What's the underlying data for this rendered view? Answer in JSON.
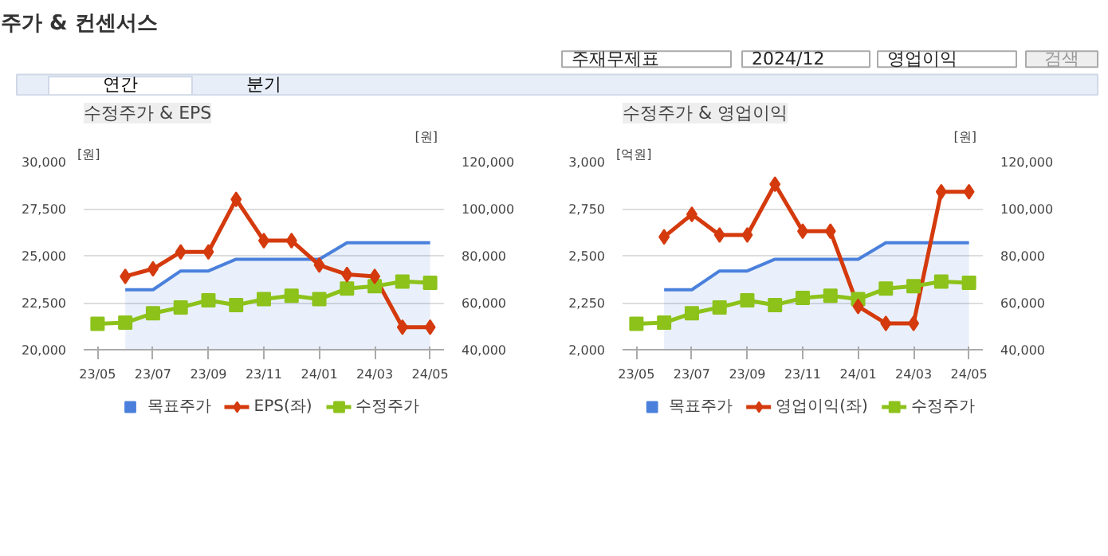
{
  "chart_data": [
    {
      "type": "other",
      "title": "주가 & 컨센서스",
      "annotations": [
        "주재무제표",
        "2024/12",
        "영업이익",
        "검색",
        "연간",
        "분기"
      ]
    },
    {
      "type": "line",
      "title": "수정주가 & EPS",
      "ylabel": "[원]",
      "y2label": "[원]",
      "categories": [
        "23/05",
        null,
        "23/07",
        null,
        "23/09",
        null,
        "23/11",
        null,
        "24/01",
        null,
        "24/03",
        null,
        "24/05"
      ],
      "ylim": [
        20000,
        30000
      ],
      "yticks": [
        {
          "value": 20000,
          "label": "20,000"
        },
        {
          "value": 22500,
          "label": "22,500"
        },
        {
          "value": 25000,
          "label": "25,000"
        },
        {
          "value": 27500,
          "label": "27,500"
        },
        {
          "value": 30000,
          "label": "30,000"
        }
      ],
      "y2lim": [
        40000,
        120000
      ],
      "y2ticks": [
        {
          "value": 40000,
          "label": "40,000"
        },
        {
          "value": 60000,
          "label": "60,000"
        },
        {
          "value": 80000,
          "label": "80,000"
        },
        {
          "value": 100000,
          "label": "100,000"
        },
        {
          "value": 120000,
          "label": "120,000"
        }
      ],
      "grid": "y",
      "legend": "bottom",
      "series": [
        {
          "name": "목표주가",
          "type": "area",
          "axis": "y2",
          "color": "#4a80dc",
          "marker": "none",
          "values": [
            null,
            65500,
            65500,
            73500,
            73500,
            78500,
            78500,
            78500,
            78500,
            85500,
            85500,
            85500,
            85500
          ]
        },
        {
          "name": "EPS(좌)",
          "type": "line",
          "color": "#d43a0d",
          "marker": "diamond",
          "values": [
            null,
            23900,
            24300,
            25200,
            25200,
            28000,
            25800,
            25800,
            24500,
            24000,
            23900,
            21200,
            21200
          ]
        },
        {
          "name": "수정주가",
          "type": "line",
          "axis": "y2",
          "color": "#8cc21a",
          "marker": "square",
          "values": [
            51000,
            51500,
            55500,
            58000,
            61000,
            59000,
            61500,
            63000,
            61500,
            66000,
            67000,
            69000,
            68500
          ]
        }
      ]
    },
    {
      "type": "line",
      "title": "수정주가 & 영업이익",
      "ylabel": "[억원]",
      "y2label": "[원]",
      "categories": [
        "23/05",
        null,
        "23/07",
        null,
        "23/09",
        null,
        "23/11",
        null,
        "24/01",
        null,
        "24/03",
        null,
        "24/05"
      ],
      "ylim": [
        2000,
        3000
      ],
      "yticks": [
        {
          "value": 2000,
          "label": "2,000"
        },
        {
          "value": 2250,
          "label": "2,250"
        },
        {
          "value": 2500,
          "label": "2,500"
        },
        {
          "value": 2750,
          "label": "2,750"
        },
        {
          "value": 3000,
          "label": "3,000"
        }
      ],
      "y2lim": [
        40000,
        120000
      ],
      "y2ticks": [
        {
          "value": 40000,
          "label": "40,000"
        },
        {
          "value": 60000,
          "label": "60,000"
        },
        {
          "value": 80000,
          "label": "80,000"
        },
        {
          "value": 100000,
          "label": "100,000"
        },
        {
          "value": 120000,
          "label": "120,000"
        }
      ],
      "grid": "y",
      "legend": "bottom",
      "series": [
        {
          "name": "목표주가",
          "type": "area",
          "axis": "y2",
          "color": "#4a80dc",
          "marker": "none",
          "values": [
            null,
            65500,
            65500,
            73500,
            73500,
            78500,
            78500,
            78500,
            78500,
            85500,
            85500,
            85500,
            85500
          ]
        },
        {
          "name": "영업이익(좌)",
          "type": "line",
          "color": "#d43a0d",
          "marker": "diamond",
          "values": [
            null,
            2600,
            2720,
            2610,
            2610,
            2880,
            2630,
            2630,
            2230,
            2140,
            2140,
            2840,
            2840
          ]
        },
        {
          "name": "수정주가",
          "type": "line",
          "axis": "y2",
          "color": "#8cc21a",
          "marker": "square",
          "values": [
            51000,
            51500,
            55500,
            58000,
            61000,
            59000,
            62000,
            63000,
            61500,
            66000,
            67000,
            69000,
            68500
          ]
        }
      ]
    }
  ]
}
